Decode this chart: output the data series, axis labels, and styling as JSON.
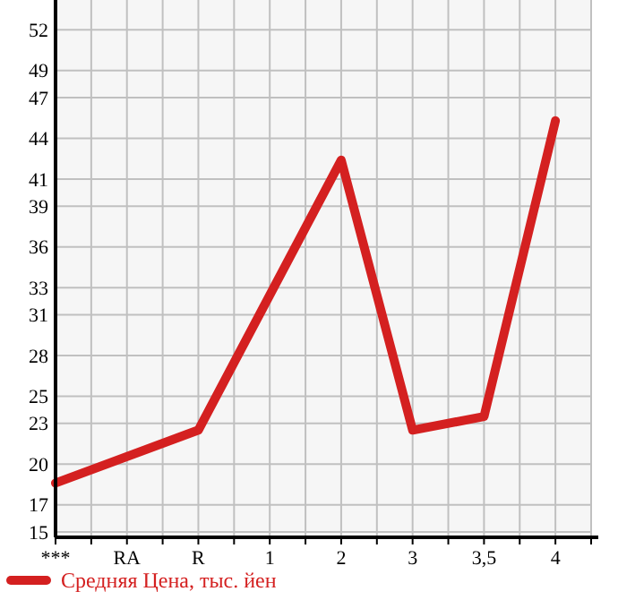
{
  "chart_data": {
    "type": "line",
    "categories": [
      "***",
      "RA",
      "R",
      "1",
      "2",
      "3",
      "3,5",
      "4"
    ],
    "series": [
      {
        "name": "Средняя Цена, тыс. йен",
        "color": "#d42020",
        "values": [
          18.6,
          null,
          22.5,
          null,
          42.4,
          22.5,
          23.5,
          45.3
        ]
      }
    ],
    "ylim": [
      14.6,
      54.2
    ],
    "yticks": [
      15,
      17,
      20,
      23,
      25,
      28,
      31,
      33,
      36,
      39,
      41,
      44,
      47,
      49,
      52
    ],
    "grid": true,
    "legend": "bottom",
    "marker": "none",
    "line_style": "solid"
  }
}
